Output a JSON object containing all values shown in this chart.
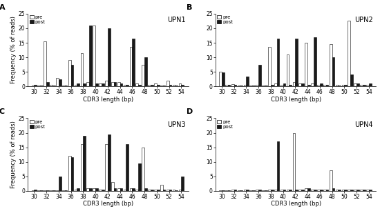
{
  "x_positions": [
    30,
    31,
    32,
    33,
    34,
    35,
    36,
    37,
    38,
    39,
    40,
    41,
    42,
    43,
    44,
    45,
    46,
    47,
    48,
    49,
    50,
    51,
    52,
    53,
    54
  ],
  "panels": [
    {
      "label": "A",
      "title": "UPN1",
      "pre": [
        0.3,
        0.2,
        15.5,
        0.5,
        3.0,
        0.3,
        9.0,
        0.5,
        11.5,
        1.5,
        21.0,
        1.0,
        2.0,
        1.5,
        1.5,
        0.5,
        13.5,
        1.0,
        7.5,
        0.5,
        1.0,
        0.3,
        2.0,
        0.5,
        1.0
      ],
      "post": [
        0.5,
        0.2,
        1.5,
        0.3,
        2.5,
        0.3,
        7.5,
        1.0,
        1.0,
        21.0,
        1.0,
        1.0,
        20.0,
        1.5,
        1.0,
        0.5,
        16.5,
        0.5,
        10.0,
        0.5,
        0.5,
        0.2,
        0.5,
        0.3,
        0.5
      ]
    },
    {
      "label": "B",
      "title": "UPN2",
      "pre": [
        5.0,
        0.5,
        0.8,
        0.2,
        0.5,
        0.2,
        0.5,
        0.2,
        13.5,
        1.0,
        0.5,
        11.0,
        1.5,
        1.0,
        15.0,
        1.0,
        0.5,
        0.5,
        14.5,
        0.5,
        0.5,
        22.5,
        1.0,
        0.5,
        0.5
      ],
      "post": [
        4.8,
        0.5,
        0.5,
        0.2,
        3.5,
        0.2,
        7.5,
        0.3,
        0.5,
        16.5,
        1.0,
        0.5,
        16.5,
        1.0,
        0.5,
        17.0,
        1.0,
        0.5,
        10.0,
        0.3,
        0.5,
        4.0,
        1.0,
        0.5,
        1.0
      ]
    },
    {
      "label": "C",
      "title": "UPN3",
      "pre": [
        0.3,
        0.2,
        0.3,
        0.2,
        0.3,
        0.2,
        12.0,
        0.5,
        16.0,
        1.0,
        1.0,
        0.5,
        16.0,
        3.0,
        1.0,
        0.5,
        1.0,
        0.5,
        15.0,
        0.5,
        0.5,
        2.0,
        0.5,
        0.5,
        0.5
      ],
      "post": [
        0.5,
        0.2,
        0.3,
        0.2,
        5.0,
        0.2,
        11.5,
        1.0,
        19.0,
        1.0,
        1.0,
        0.5,
        19.5,
        1.0,
        1.0,
        16.0,
        1.0,
        9.5,
        1.0,
        0.5,
        0.5,
        0.5,
        0.5,
        0.3,
        5.0
      ]
    },
    {
      "label": "D",
      "title": "UPN4",
      "pre": [
        0.3,
        0.2,
        0.5,
        0.2,
        0.5,
        0.2,
        0.5,
        0.2,
        0.5,
        0.5,
        0.5,
        0.5,
        20.0,
        0.5,
        1.0,
        0.5,
        0.5,
        0.5,
        7.0,
        0.5,
        0.5,
        0.5,
        0.5,
        0.5,
        0.5
      ],
      "post": [
        0.3,
        0.2,
        0.5,
        0.2,
        0.5,
        0.2,
        0.5,
        0.2,
        0.5,
        17.0,
        0.5,
        0.5,
        0.5,
        0.5,
        1.0,
        0.5,
        0.5,
        0.5,
        1.0,
        0.5,
        0.5,
        0.5,
        0.5,
        0.5,
        0.5
      ]
    }
  ],
  "ylim": [
    0,
    25
  ],
  "yticks": [
    0,
    5,
    10,
    15,
    20,
    25
  ],
  "xtick_labels": [
    "30",
    "32",
    "34",
    "36",
    "38",
    "40",
    "42",
    "44",
    "46",
    "48",
    "50",
    "52",
    "54"
  ],
  "xtick_positions": [
    30,
    32,
    34,
    36,
    38,
    40,
    42,
    44,
    46,
    48,
    50,
    52,
    54
  ],
  "xlabel": "CDR3 length (bp)",
  "ylabel": "Frequency (% of reads)",
  "bar_width": 0.42,
  "pre_color": "#ffffff",
  "post_color": "#1a1a1a",
  "edge_color": "#000000",
  "background": "#ffffff"
}
